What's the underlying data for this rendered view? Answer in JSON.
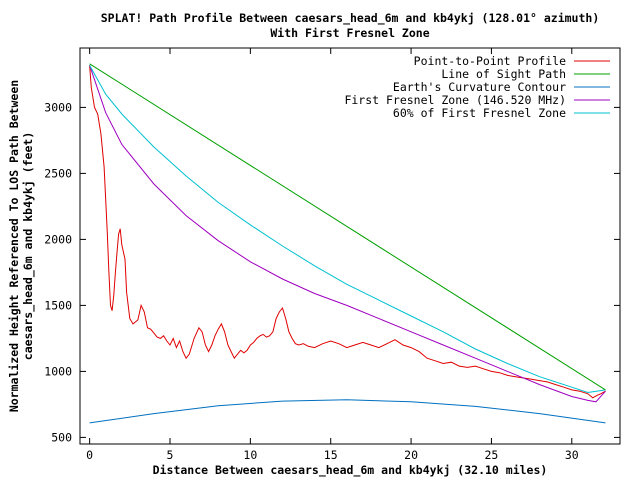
{
  "chart_data": {
    "type": "line",
    "title": "SPLAT! Path Profile Between caesars_head_6m and kb4ykj (128.01° azimuth)",
    "subtitle": "With First Fresnel Zone",
    "xlabel": "Distance Between caesars_head_6m and kb4ykj (32.10 miles)",
    "ylabel_line1": "Normalized Height Referenced To LOS Path Between",
    "ylabel_line2": "caesars_head_6m and kb4ykj (feet)",
    "xlim": [
      -0.6,
      33
    ],
    "ylim": [
      450,
      3450
    ],
    "x_ticks": [
      0,
      5,
      10,
      15,
      20,
      25,
      30
    ],
    "y_ticks": [
      500,
      1000,
      1500,
      2000,
      2500,
      3000
    ],
    "grid": false,
    "legend_position": "top-right",
    "series": [
      {
        "name": "Point-to-Point Profile",
        "color": "#e00000",
        "points": [
          [
            0,
            3320
          ],
          [
            0.1,
            3150
          ],
          [
            0.3,
            3000
          ],
          [
            0.5,
            2950
          ],
          [
            0.7,
            2800
          ],
          [
            0.9,
            2550
          ],
          [
            1.0,
            2300
          ],
          [
            1.1,
            2050
          ],
          [
            1.2,
            1750
          ],
          [
            1.3,
            1500
          ],
          [
            1.4,
            1460
          ],
          [
            1.5,
            1580
          ],
          [
            1.6,
            1750
          ],
          [
            1.7,
            1900
          ],
          [
            1.8,
            2040
          ],
          [
            1.9,
            2080
          ],
          [
            2.0,
            1960
          ],
          [
            2.2,
            1850
          ],
          [
            2.3,
            1600
          ],
          [
            2.5,
            1400
          ],
          [
            2.7,
            1360
          ],
          [
            3.0,
            1390
          ],
          [
            3.2,
            1500
          ],
          [
            3.4,
            1450
          ],
          [
            3.6,
            1330
          ],
          [
            3.8,
            1320
          ],
          [
            4.0,
            1290
          ],
          [
            4.2,
            1260
          ],
          [
            4.4,
            1250
          ],
          [
            4.6,
            1270
          ],
          [
            4.8,
            1230
          ],
          [
            5.0,
            1200
          ],
          [
            5.2,
            1250
          ],
          [
            5.4,
            1180
          ],
          [
            5.6,
            1230
          ],
          [
            5.8,
            1150
          ],
          [
            6.0,
            1100
          ],
          [
            6.2,
            1130
          ],
          [
            6.5,
            1250
          ],
          [
            6.8,
            1330
          ],
          [
            7.0,
            1300
          ],
          [
            7.2,
            1200
          ],
          [
            7.4,
            1150
          ],
          [
            7.6,
            1200
          ],
          [
            7.8,
            1270
          ],
          [
            8.0,
            1320
          ],
          [
            8.2,
            1360
          ],
          [
            8.4,
            1300
          ],
          [
            8.6,
            1200
          ],
          [
            8.8,
            1150
          ],
          [
            9.0,
            1100
          ],
          [
            9.2,
            1130
          ],
          [
            9.4,
            1160
          ],
          [
            9.6,
            1140
          ],
          [
            9.8,
            1160
          ],
          [
            10.0,
            1200
          ],
          [
            10.2,
            1220
          ],
          [
            10.4,
            1250
          ],
          [
            10.6,
            1270
          ],
          [
            10.8,
            1280
          ],
          [
            11.0,
            1260
          ],
          [
            11.2,
            1270
          ],
          [
            11.4,
            1300
          ],
          [
            11.6,
            1400
          ],
          [
            11.8,
            1450
          ],
          [
            12.0,
            1480
          ],
          [
            12.2,
            1400
          ],
          [
            12.4,
            1300
          ],
          [
            12.6,
            1250
          ],
          [
            12.8,
            1210
          ],
          [
            13.0,
            1200
          ],
          [
            13.3,
            1210
          ],
          [
            13.6,
            1190
          ],
          [
            14.0,
            1180
          ],
          [
            14.5,
            1210
          ],
          [
            15.0,
            1230
          ],
          [
            15.5,
            1210
          ],
          [
            16.0,
            1180
          ],
          [
            16.5,
            1200
          ],
          [
            17.0,
            1220
          ],
          [
            17.5,
            1200
          ],
          [
            18.0,
            1180
          ],
          [
            18.5,
            1210
          ],
          [
            19.0,
            1240
          ],
          [
            19.5,
            1200
          ],
          [
            20.0,
            1180
          ],
          [
            20.5,
            1150
          ],
          [
            21.0,
            1100
          ],
          [
            21.5,
            1080
          ],
          [
            22.0,
            1060
          ],
          [
            22.5,
            1070
          ],
          [
            23.0,
            1040
          ],
          [
            23.5,
            1030
          ],
          [
            24.0,
            1040
          ],
          [
            24.5,
            1020
          ],
          [
            25.0,
            1000
          ],
          [
            25.5,
            990
          ],
          [
            26.0,
            970
          ],
          [
            26.5,
            960
          ],
          [
            27.0,
            950
          ],
          [
            27.5,
            940
          ],
          [
            28.0,
            930
          ],
          [
            28.5,
            920
          ],
          [
            29.0,
            900
          ],
          [
            29.5,
            880
          ],
          [
            30.0,
            860
          ],
          [
            30.5,
            850
          ],
          [
            31.0,
            830
          ],
          [
            31.3,
            800
          ],
          [
            31.6,
            820
          ],
          [
            31.8,
            830
          ],
          [
            32.1,
            850
          ]
        ]
      },
      {
        "name": "Line of Sight Path",
        "color": "#00a000",
        "points": [
          [
            0,
            3330
          ],
          [
            32.1,
            860
          ]
        ]
      },
      {
        "name": "Earth's Curvature Contour",
        "color": "#0070c0",
        "points": [
          [
            0,
            610
          ],
          [
            4,
            680
          ],
          [
            8,
            740
          ],
          [
            12,
            775
          ],
          [
            16,
            785
          ],
          [
            20,
            770
          ],
          [
            24,
            735
          ],
          [
            28,
            680
          ],
          [
            32.1,
            610
          ]
        ]
      },
      {
        "name": "First Fresnel Zone (146.520 MHz)",
        "color": "#a000c0",
        "points": [
          [
            0,
            3320
          ],
          [
            1,
            2960
          ],
          [
            2,
            2720
          ],
          [
            4,
            2420
          ],
          [
            6,
            2180
          ],
          [
            8,
            1990
          ],
          [
            10,
            1830
          ],
          [
            12,
            1700
          ],
          [
            14,
            1590
          ],
          [
            16,
            1500
          ],
          [
            18,
            1400
          ],
          [
            20,
            1300
          ],
          [
            22,
            1200
          ],
          [
            24,
            1100
          ],
          [
            26,
            1000
          ],
          [
            28,
            900
          ],
          [
            30,
            810
          ],
          [
            31,
            780
          ],
          [
            31.5,
            770
          ],
          [
            32.1,
            850
          ]
        ]
      },
      {
        "name": "60% of First Fresnel Zone",
        "color": "#00c0d0",
        "points": [
          [
            0,
            3320
          ],
          [
            1,
            3100
          ],
          [
            2,
            2950
          ],
          [
            4,
            2700
          ],
          [
            6,
            2480
          ],
          [
            8,
            2280
          ],
          [
            10,
            2110
          ],
          [
            12,
            1950
          ],
          [
            14,
            1800
          ],
          [
            16,
            1660
          ],
          [
            18,
            1540
          ],
          [
            20,
            1420
          ],
          [
            22,
            1300
          ],
          [
            24,
            1170
          ],
          [
            26,
            1060
          ],
          [
            28,
            960
          ],
          [
            30,
            880
          ],
          [
            31,
            840
          ],
          [
            32.1,
            860
          ]
        ]
      }
    ]
  }
}
